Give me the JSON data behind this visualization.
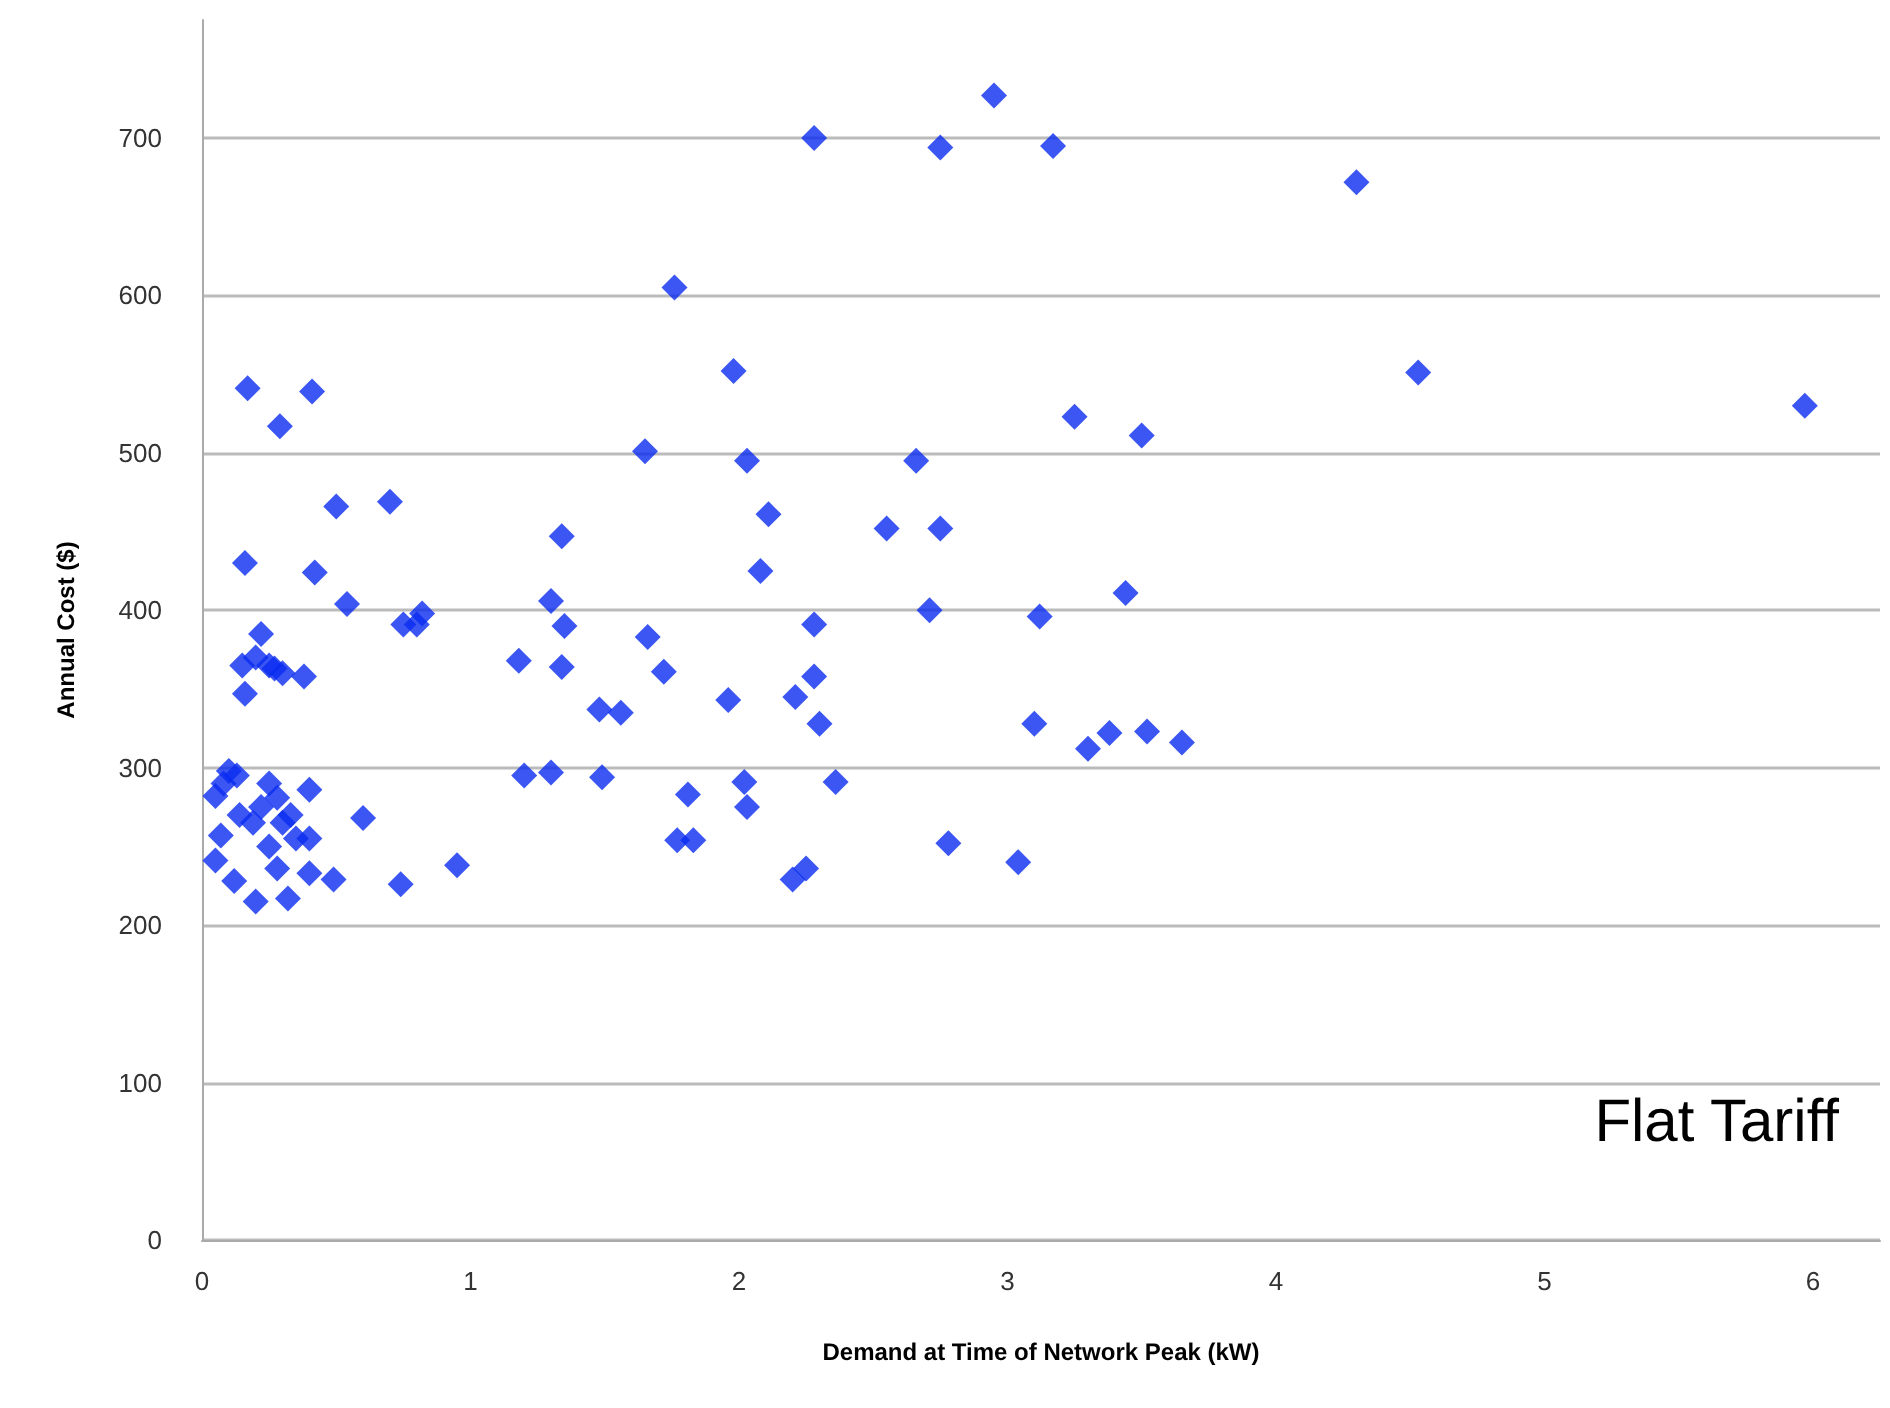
{
  "chart_data": {
    "type": "scatter",
    "xlabel": "Demand at Time of Network Peak (kW)",
    "ylabel": "Annual Cost ($)",
    "annotations": [
      "Flat Tariff"
    ],
    "xlim": [
      0,
      6.25
    ],
    "xticks": [
      0,
      1,
      2,
      3,
      4,
      5,
      6
    ],
    "ylim": [
      0,
      775
    ],
    "yticks": [
      0,
      100,
      200,
      300,
      400,
      500,
      600,
      700
    ],
    "grid": "y",
    "marker": "diamond",
    "series": [
      {
        "color": "#0a2cf0",
        "x": [
          2.28,
          2.95,
          2.75,
          3.17,
          4.3,
          1.76,
          1.98,
          4.53,
          5.97,
          3.25,
          3.5,
          0.17,
          0.41,
          0.29,
          1.65,
          2.03,
          2.66,
          0.5,
          0.7,
          2.11,
          2.55,
          2.75,
          1.34,
          0.16,
          0.42,
          2.08,
          3.44,
          1.3,
          0.54,
          0.82,
          0.75,
          0.8,
          1.35,
          2.28,
          2.71,
          3.12,
          1.66,
          0.22,
          1.18,
          1.34,
          1.72,
          2.28,
          0.15,
          0.2,
          0.25,
          0.3,
          0.38,
          0.16,
          0.27,
          1.96,
          2.21,
          1.48,
          1.56,
          2.3,
          3.1,
          3.38,
          3.52,
          3.65,
          3.3,
          1.2,
          1.3,
          1.49,
          2.02,
          2.36,
          1.81,
          2.03,
          1.77,
          1.83,
          2.78,
          3.04,
          2.2,
          2.25,
          0.95,
          0.74,
          0.49,
          0.6,
          0.05,
          0.08,
          0.1,
          0.13,
          0.07,
          0.05,
          0.12,
          0.2,
          0.32,
          0.4,
          0.14,
          0.22,
          0.25,
          0.28,
          0.3,
          0.35,
          0.4,
          0.4,
          0.19,
          0.28,
          0.33,
          0.25
        ],
        "values": [
          700,
          727,
          694,
          695,
          672,
          605,
          552,
          551,
          530,
          523,
          511,
          541,
          539,
          517,
          501,
          495,
          495,
          466,
          469,
          461,
          452,
          452,
          447,
          430,
          424,
          425,
          411,
          406,
          404,
          398,
          391,
          391,
          390,
          391,
          400,
          396,
          383,
          385,
          368,
          364,
          361,
          358,
          365,
          370,
          365,
          360,
          358,
          347,
          363,
          343,
          345,
          337,
          335,
          328,
          328,
          322,
          323,
          316,
          312,
          295,
          297,
          294,
          291,
          291,
          283,
          275,
          254,
          254,
          252,
          240,
          229,
          236,
          238,
          226,
          229,
          268,
          282,
          290,
          298,
          295,
          257,
          241,
          228,
          215,
          217,
          233,
          270,
          275,
          290,
          281,
          265,
          255,
          255,
          286,
          265,
          236,
          270,
          250
        ]
      }
    ]
  }
}
